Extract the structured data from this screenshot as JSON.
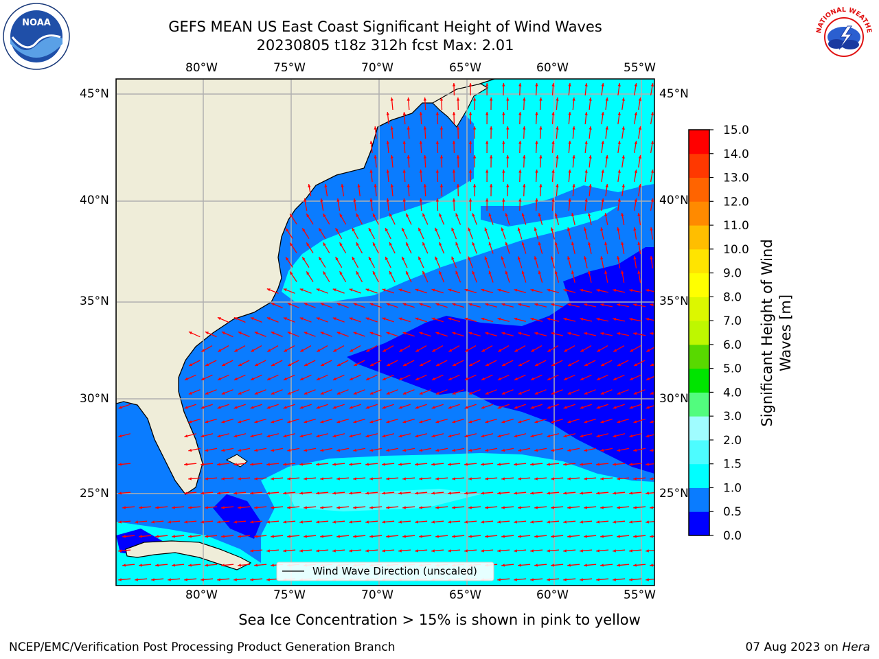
{
  "header": {
    "title_line1": "GEFS MEAN US East Coast Significant Height of Wind Waves",
    "title_line2": "20230805 t18z 312h fcst   Max: 2.01"
  },
  "logos": {
    "left_icon": "noaa-logo-icon",
    "left_text": "NOAA",
    "right_icon": "nws-logo-icon",
    "right_text": "NATIONAL WEATHER SERVICE"
  },
  "map": {
    "lon_labels": [
      "80°W",
      "75°W",
      "70°W",
      "65°W",
      "60°W",
      "55°W"
    ],
    "lat_labels": [
      "45°N",
      "40°N",
      "35°N",
      "30°N",
      "25°N"
    ],
    "lon_range": [
      -85,
      -54.4
    ],
    "lat_range": [
      20.5,
      45.8
    ],
    "legend_label": "Wind Wave Direction (unscaled)",
    "land_color": "#efedd9",
    "arrow_color": "#ff0000",
    "grid": true
  },
  "colorbar": {
    "label_line1": "Significant Height of Wind",
    "label_line2": "Waves [m]",
    "ticks": [
      "0.0",
      "0.5",
      "1.0",
      "1.5",
      "2.0",
      "3.0",
      "4.0",
      "5.0",
      "6.0",
      "7.0",
      "8.0",
      "9.0",
      "10.0",
      "11.0",
      "12.0",
      "13.0",
      "14.0",
      "15.0"
    ],
    "colors": [
      "#0000ff",
      "#0a7cff",
      "#00ffff",
      "#4dfcff",
      "#a0fcff",
      "#52fc7e",
      "#00e400",
      "#58d900",
      "#bef700",
      "#dcf700",
      "#ffff00",
      "#ffe400",
      "#ffbe00",
      "#ff8a00",
      "#ff6400",
      "#ff3800",
      "#ff0000"
    ]
  },
  "caption": "Sea Ice Concentration > 15% is shown in pink to yellow",
  "footer": {
    "left": "NCEP/EMC/Verification Post Processing Product Generation Branch",
    "right_date": "07 Aug 2023 on ",
    "right_machine": "Hera"
  }
}
